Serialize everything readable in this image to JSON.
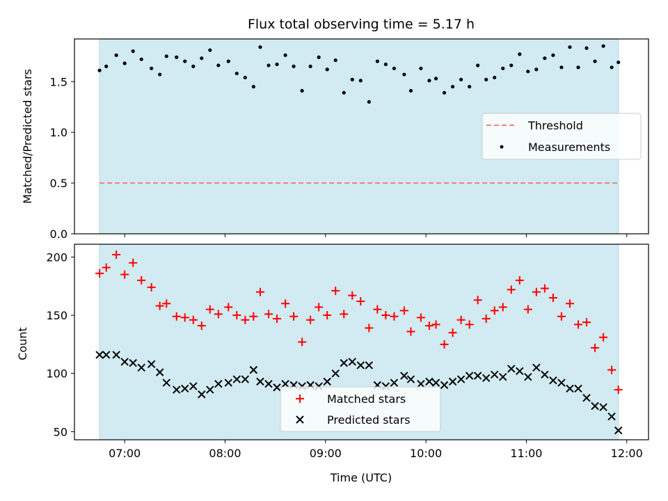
{
  "chart_data": {
    "title": "Flux total observing time = 5.17 h",
    "xlabel": "Time (UTC)",
    "x_ticks": [
      "07:00",
      "08:00",
      "09:00",
      "10:00",
      "11:00",
      "12:00"
    ],
    "observation_window": [
      "06:45",
      "11:55"
    ],
    "colors": {
      "shade": "#add8e6",
      "threshold": "#f08080",
      "matched": "#ff0000",
      "predicted": "#000000",
      "measurements": "#000000"
    },
    "panels": [
      {
        "type": "scatter",
        "ylabel": "Matched/Predicted stars",
        "ylim": [
          0.0,
          1.92
        ],
        "y_ticks": [
          "0.0",
          "0.5",
          "1.0",
          "1.5"
        ],
        "legend": {
          "placement": "center-right",
          "entries": [
            "Threshold",
            "Measurements"
          ]
        },
        "series": [
          {
            "name": "Threshold",
            "kind": "hline",
            "value": 0.5,
            "x": [
              "06:45",
              "11:55"
            ]
          },
          {
            "name": "Measurements",
            "kind": "points",
            "x": [
              "06:45",
              "06:49",
              "06:55",
              "07:00",
              "07:05",
              "07:10",
              "07:16",
              "07:21",
              "07:25",
              "07:31",
              "07:36",
              "07:41",
              "07:46",
              "07:51",
              "07:56",
              "08:02",
              "08:07",
              "08:12",
              "08:17",
              "08:21",
              "08:26",
              "08:31",
              "08:36",
              "08:41",
              "08:46",
              "08:51",
              "08:56",
              "09:01",
              "09:06",
              "09:11",
              "09:16",
              "09:21",
              "09:26",
              "09:31",
              "09:36",
              "09:41",
              "09:47",
              "09:51",
              "09:57",
              "10:02",
              "10:06",
              "10:11",
              "10:16",
              "10:21",
              "10:26",
              "10:31",
              "10:36",
              "10:41",
              "10:46",
              "10:51",
              "10:56",
              "11:01",
              "11:06",
              "11:11",
              "11:16",
              "11:21",
              "11:26",
              "11:31",
              "11:36",
              "11:41",
              "11:46",
              "11:51",
              "11:55"
            ],
            "y": [
              1.61,
              1.65,
              1.76,
              1.68,
              1.8,
              1.72,
              1.63,
              1.57,
              1.75,
              1.74,
              1.7,
              1.65,
              1.73,
              1.81,
              1.66,
              1.7,
              1.58,
              1.54,
              1.45,
              1.84,
              1.66,
              1.67,
              1.76,
              1.65,
              1.41,
              1.65,
              1.74,
              1.62,
              1.71,
              1.39,
              1.52,
              1.51,
              1.3,
              1.7,
              1.67,
              1.63,
              1.57,
              1.41,
              1.63,
              1.51,
              1.53,
              1.39,
              1.45,
              1.52,
              1.45,
              1.66,
              1.52,
              1.54,
              1.63,
              1.66,
              1.77,
              1.6,
              1.62,
              1.73,
              1.76,
              1.64,
              1.84,
              1.64,
              1.83,
              1.7,
              1.85,
              1.64,
              1.69
            ]
          }
        ]
      },
      {
        "type": "scatter",
        "ylabel": "Count",
        "ylim": [
          43,
          211
        ],
        "y_ticks": [
          "50",
          "100",
          "150",
          "200"
        ],
        "legend": {
          "placement": "bottom-center",
          "entries": [
            "Matched stars",
            "Predicted stars"
          ]
        },
        "series": [
          {
            "name": "Matched stars",
            "marker": "+",
            "x": [
              "06:45",
              "06:49",
              "06:55",
              "07:00",
              "07:05",
              "07:10",
              "07:16",
              "07:21",
              "07:25",
              "07:31",
              "07:36",
              "07:41",
              "07:46",
              "07:51",
              "07:56",
              "08:02",
              "08:07",
              "08:12",
              "08:17",
              "08:21",
              "08:26",
              "08:31",
              "08:36",
              "08:41",
              "08:46",
              "08:51",
              "08:56",
              "09:01",
              "09:06",
              "09:11",
              "09:16",
              "09:21",
              "09:26",
              "09:31",
              "09:36",
              "09:41",
              "09:47",
              "09:51",
              "09:57",
              "10:02",
              "10:06",
              "10:11",
              "10:16",
              "10:21",
              "10:26",
              "10:31",
              "10:36",
              "10:41",
              "10:46",
              "10:51",
              "10:56",
              "11:01",
              "11:06",
              "11:11",
              "11:16",
              "11:21",
              "11:26",
              "11:31",
              "11:36",
              "11:41",
              "11:46",
              "11:51",
              "11:55"
            ],
            "y": [
              186,
              191,
              202,
              185,
              195,
              180,
              174,
              158,
              160,
              149,
              148,
              146,
              141,
              155,
              151,
              157,
              150,
              146,
              149,
              170,
              151,
              147,
              160,
              149,
              127,
              146,
              157,
              150,
              171,
              151,
              167,
              162,
              139,
              155,
              150,
              149,
              154,
              136,
              148,
              141,
              142,
              125,
              135,
              146,
              142,
              163,
              147,
              154,
              157,
              172,
              180,
              155,
              170,
              173,
              165,
              149,
              160,
              142,
              144,
              122,
              131,
              103,
              86
            ]
          },
          {
            "name": "Predicted stars",
            "marker": "x",
            "x": [
              "06:45",
              "06:49",
              "06:55",
              "07:00",
              "07:05",
              "07:10",
              "07:16",
              "07:21",
              "07:25",
              "07:31",
              "07:36",
              "07:41",
              "07:46",
              "07:51",
              "07:56",
              "08:02",
              "08:07",
              "08:12",
              "08:17",
              "08:21",
              "08:26",
              "08:31",
              "08:36",
              "08:41",
              "08:46",
              "08:51",
              "08:56",
              "09:01",
              "09:06",
              "09:11",
              "09:16",
              "09:21",
              "09:26",
              "09:31",
              "09:36",
              "09:41",
              "09:47",
              "09:51",
              "09:57",
              "10:02",
              "10:06",
              "10:11",
              "10:16",
              "10:21",
              "10:26",
              "10:31",
              "10:36",
              "10:41",
              "10:46",
              "10:51",
              "10:56",
              "11:01",
              "11:06",
              "11:11",
              "11:16",
              "11:21",
              "11:26",
              "11:31",
              "11:36",
              "11:41",
              "11:46",
              "11:51",
              "11:55"
            ],
            "y": [
              116,
              116,
              116,
              110,
              109,
              105,
              108,
              101,
              92,
              86,
              87,
              89,
              82,
              86,
              91,
              92,
              95,
              95,
              103,
              93,
              91,
              88,
              91,
              90,
              89,
              90,
              89,
              93,
              100,
              109,
              110,
              107,
              107,
              90,
              89,
              92,
              98,
              95,
              91,
              93,
              92,
              90,
              93,
              95,
              98,
              98,
              96,
              99,
              97,
              104,
              102,
              97,
              105,
              99,
              94,
              92,
              87,
              87,
              79,
              72,
              71,
              63,
              51
            ]
          }
        ]
      }
    ]
  }
}
